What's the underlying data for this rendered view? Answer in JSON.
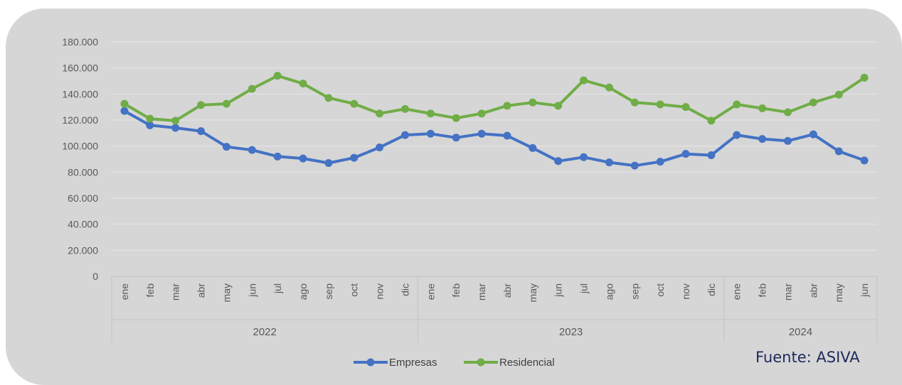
{
  "chart_data": {
    "type": "line",
    "categories": [
      "ene",
      "feb",
      "mar",
      "abr",
      "may",
      "jun",
      "jul",
      "ago",
      "sep",
      "oct",
      "nov",
      "dic",
      "ene",
      "feb",
      "mar",
      "abr",
      "may",
      "jun",
      "jul",
      "ago",
      "sep",
      "oct",
      "nov",
      "dic",
      "ene",
      "feb",
      "mar",
      "abr",
      "may",
      "jun"
    ],
    "year_groups": [
      {
        "label": "2022",
        "count": 12
      },
      {
        "label": "2023",
        "count": 12
      },
      {
        "label": "2024",
        "count": 6
      }
    ],
    "y_ticks": [
      "0",
      "20.000",
      "40.000",
      "60.000",
      "80.000",
      "100.000",
      "120.000",
      "140.000",
      "160.000",
      "180.000"
    ],
    "ylim": [
      0,
      180000
    ],
    "grid": true,
    "legend_position": "bottom",
    "series": [
      {
        "name": "Empresas",
        "color": "#4472c4",
        "values": [
          127000,
          116000,
          114000,
          111500,
          99500,
          97000,
          92000,
          90500,
          87000,
          91000,
          99000,
          108500,
          109500,
          106500,
          109500,
          108000,
          98500,
          88500,
          91500,
          87500,
          85000,
          88000,
          94000,
          93000,
          108500,
          105500,
          104000,
          109000,
          96000,
          89000
        ]
      },
      {
        "name": "Residencial",
        "color": "#70ad47",
        "values": [
          132500,
          121000,
          119500,
          131500,
          132500,
          144000,
          154000,
          148000,
          137000,
          132500,
          125000,
          128500,
          125000,
          121500,
          125000,
          131000,
          133500,
          131000,
          150500,
          145000,
          133500,
          132000,
          130000,
          119500,
          132000,
          129000,
          126000,
          133500,
          139500,
          152500
        ]
      }
    ]
  },
  "source_text": "Fuente: ASIVA"
}
